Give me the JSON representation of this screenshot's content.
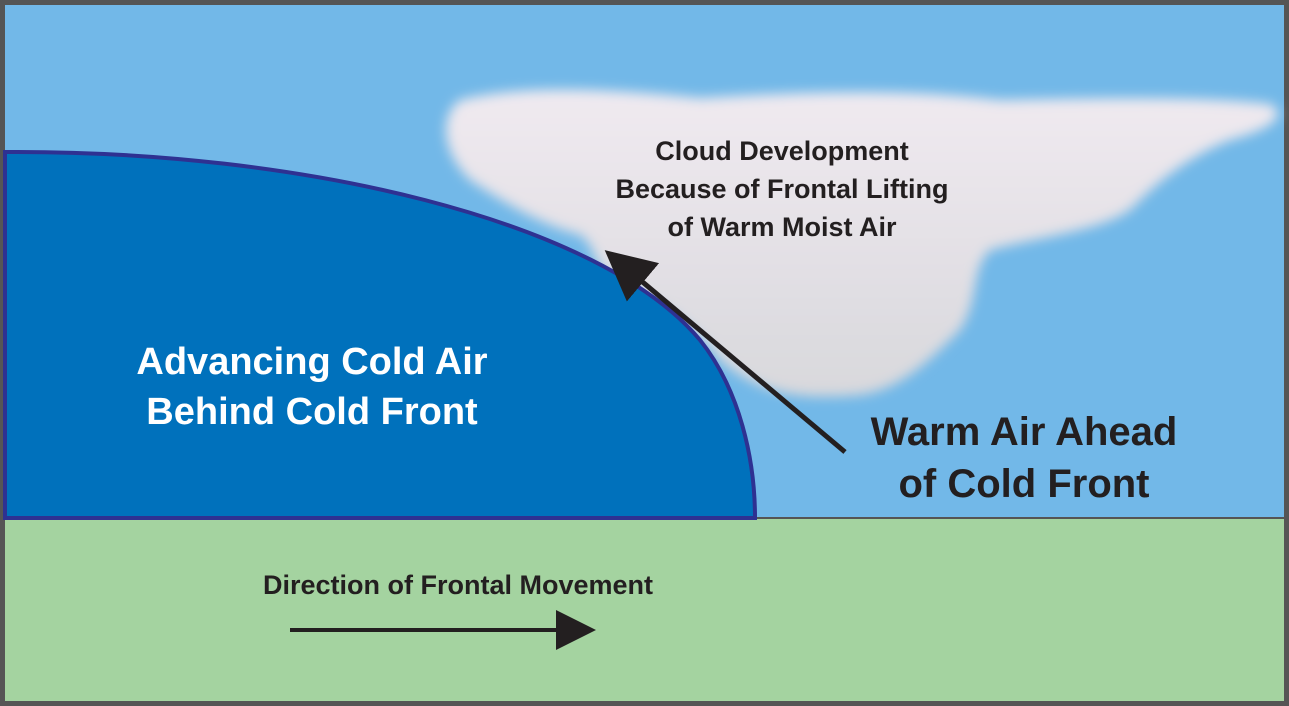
{
  "cloud_label": [
    "Cloud Development",
    "Because of Frontal Lifting",
    "of Warm Moist Air"
  ],
  "cold_air_label": [
    "Advancing Cold Air",
    "Behind Cold Front"
  ],
  "warm_air_label": [
    "Warm Air Ahead",
    "of Cold Front"
  ],
  "movement_label": "Direction of Frontal Movement"
}
